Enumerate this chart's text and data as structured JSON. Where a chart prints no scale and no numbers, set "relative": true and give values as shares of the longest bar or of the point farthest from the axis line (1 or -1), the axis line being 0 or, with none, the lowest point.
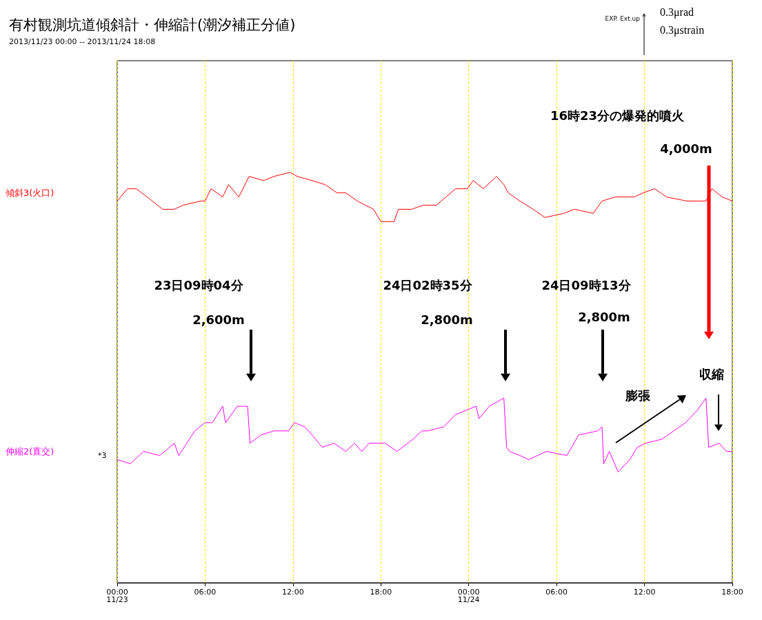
{
  "chart_data": {
    "type": "line",
    "title": "有村観測坑道傾斜計・伸縮計(潮汐補正分値)",
    "subtitle": "2013/11/23 00:00 -- 2013/11/24 18:08",
    "relative": true,
    "grid": "x",
    "marker": "none",
    "line_style": "solid",
    "xlim": [
      "2013-11-23T00:00",
      "2013-11-24T18:00"
    ],
    "xticks": [
      {
        "value": "2013-11-23T00:00",
        "label": "00:00\n11/23"
      },
      {
        "value": "2013-11-23T06:00",
        "label": "06:00"
      },
      {
        "value": "2013-11-23T12:00",
        "label": "12:00"
      },
      {
        "value": "2013-11-23T18:00",
        "label": "18:00"
      },
      {
        "value": "2013-11-24T00:00",
        "label": "00:00\n11/24"
      },
      {
        "value": "2013-11-24T06:00",
        "label": "06:00"
      },
      {
        "value": "2013-11-24T12:00",
        "label": "12:00"
      },
      {
        "value": "2013-11-24T18:00",
        "label": "18:00"
      }
    ],
    "series": [
      {
        "name": "傾斜3(火口)",
        "color": "#ff0000",
        "x": [
          "2013-11-23T00:00",
          "2013-11-23T00:42",
          "2013-11-23T01:18",
          "2013-11-23T02:24",
          "2013-11-23T03:06",
          "2013-11-23T03:54",
          "2013-11-23T04:30",
          "2013-11-23T05:42",
          "2013-11-23T06:00",
          "2013-11-23T06:24",
          "2013-11-23T07:12",
          "2013-11-23T07:36",
          "2013-11-23T08:18",
          "2013-11-23T09:00",
          "2013-11-23T10:00",
          "2013-11-23T10:42",
          "2013-11-23T11:48",
          "2013-11-23T12:18",
          "2013-11-23T13:18",
          "2013-11-23T14:12",
          "2013-11-23T15:00",
          "2013-11-23T15:36",
          "2013-11-23T16:24",
          "2013-11-23T17:30",
          "2013-11-23T18:00",
          "2013-11-23T18:54",
          "2013-11-23T19:12",
          "2013-11-23T20:06",
          "2013-11-23T20:54",
          "2013-11-23T21:48",
          "2013-11-23T23:06",
          "2013-11-23T23:54",
          "2013-11-24T00:18",
          "2013-11-24T01:00",
          "2013-11-24T01:54",
          "2013-11-24T02:24",
          "2013-11-24T02:42",
          "2013-11-24T03:30",
          "2013-11-24T04:24",
          "2013-11-24T05:12",
          "2013-11-24T06:30",
          "2013-11-24T07:12",
          "2013-11-24T08:30",
          "2013-11-24T09:06",
          "2013-11-24T10:00",
          "2013-11-24T11:18",
          "2013-11-24T11:54",
          "2013-11-24T12:42",
          "2013-11-24T13:30",
          "2013-11-24T14:54",
          "2013-11-24T16:12",
          "2013-11-24T16:36",
          "2013-11-24T17:18",
          "2013-11-24T18:00"
        ],
        "values": [
          0.93,
          0.96,
          0.96,
          0.93,
          0.91,
          0.91,
          0.92,
          0.93,
          0.93,
          0.96,
          0.94,
          0.97,
          0.94,
          0.99,
          0.98,
          0.99,
          1.0,
          0.99,
          0.98,
          0.97,
          0.95,
          0.95,
          0.93,
          0.91,
          0.88,
          0.88,
          0.91,
          0.91,
          0.92,
          0.92,
          0.96,
          0.96,
          0.98,
          0.96,
          0.99,
          0.97,
          0.95,
          0.93,
          0.91,
          0.89,
          0.9,
          0.91,
          0.9,
          0.93,
          0.94,
          0.94,
          0.95,
          0.96,
          0.94,
          0.93,
          0.93,
          0.96,
          0.94,
          0.93
        ]
      },
      {
        "name": "伸縮2(直交)",
        "color": "#ff00ff",
        "x": [
          "2013-11-23T00:00",
          "2013-11-23T00:54",
          "2013-11-23T01:48",
          "2013-11-23T02:54",
          "2013-11-23T03:54",
          "2013-11-23T04:12",
          "2013-11-23T05:18",
          "2013-11-23T06:00",
          "2013-11-23T06:30",
          "2013-11-23T07:12",
          "2013-11-23T07:24",
          "2013-11-23T08:12",
          "2013-11-23T08:54",
          "2013-11-23T09:04",
          "2013-11-23T09:48",
          "2013-11-23T10:42",
          "2013-11-23T11:42",
          "2013-11-23T12:06",
          "2013-11-23T12:48",
          "2013-11-23T13:18",
          "2013-11-23T14:00",
          "2013-11-23T14:48",
          "2013-11-23T15:36",
          "2013-11-23T16:12",
          "2013-11-23T16:42",
          "2013-11-23T17:12",
          "2013-11-23T18:18",
          "2013-11-23T19:06",
          "2013-11-23T20:12",
          "2013-11-23T20:48",
          "2013-11-23T21:12",
          "2013-11-23T22:18",
          "2013-11-23T23:06",
          "2013-11-24T00:30",
          "2013-11-24T00:42",
          "2013-11-24T01:24",
          "2013-11-24T02:24",
          "2013-11-24T02:35",
          "2013-11-24T02:48",
          "2013-11-24T03:30",
          "2013-11-24T04:06",
          "2013-11-24T05:18",
          "2013-11-24T06:42",
          "2013-11-24T07:30",
          "2013-11-24T08:48",
          "2013-11-24T09:06",
          "2013-11-24T09:13",
          "2013-11-24T09:36",
          "2013-11-24T10:12",
          "2013-11-24T11:00",
          "2013-11-24T11:30",
          "2013-11-24T12:06",
          "2013-11-24T13:12",
          "2013-11-24T14:00",
          "2013-11-24T14:48",
          "2013-11-24T15:36",
          "2013-11-24T16:12",
          "2013-11-24T16:23",
          "2013-11-24T17:06",
          "2013-11-24T17:36",
          "2013-11-24T18:00"
        ],
        "values": [
          0.3,
          0.29,
          0.32,
          0.31,
          0.34,
          0.31,
          0.37,
          0.39,
          0.39,
          0.43,
          0.39,
          0.43,
          0.43,
          0.34,
          0.36,
          0.37,
          0.37,
          0.39,
          0.38,
          0.36,
          0.33,
          0.34,
          0.32,
          0.34,
          0.32,
          0.34,
          0.34,
          0.32,
          0.35,
          0.37,
          0.37,
          0.38,
          0.41,
          0.43,
          0.4,
          0.43,
          0.45,
          0.33,
          0.32,
          0.31,
          0.3,
          0.32,
          0.31,
          0.36,
          0.37,
          0.38,
          0.29,
          0.32,
          0.27,
          0.3,
          0.33,
          0.34,
          0.35,
          0.37,
          0.39,
          0.42,
          0.45,
          0.33,
          0.34,
          0.32,
          0.32
        ]
      }
    ],
    "annotations": [
      "16時23分の爆発的噴火",
      "4,000m",
      "23日09時04分",
      "2,600m",
      "24日02時35分",
      "2,800m",
      "24日09時13分",
      "2,800m",
      "膨張",
      "収縮",
      "*3",
      "EXP. Ext.up",
      "0.3μrad",
      "0.3μstrain"
    ]
  }
}
